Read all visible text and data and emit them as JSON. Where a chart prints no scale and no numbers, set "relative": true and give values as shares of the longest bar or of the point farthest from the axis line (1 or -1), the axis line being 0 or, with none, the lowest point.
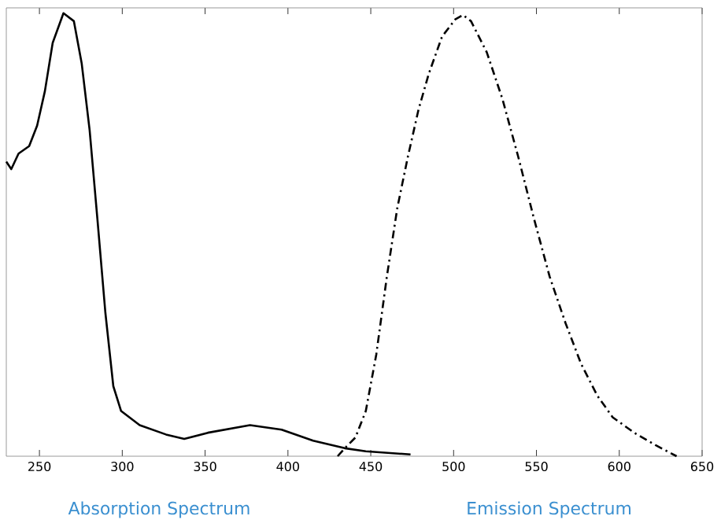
{
  "chart_data": {
    "type": "line",
    "relative": true,
    "xlim": [
      230,
      650
    ],
    "xticks": [
      250,
      300,
      350,
      400,
      450,
      500,
      550,
      600,
      650
    ],
    "tick_labels": "x",
    "grid": false,
    "series": [
      {
        "color": "#000000",
        "line_style": "solid",
        "x": [
          230,
          233,
          237.4,
          243.8,
          248.6,
          253.3,
          258,
          264.5,
          270.8,
          275.5,
          280.3,
          285,
          289.8,
          294.6,
          299.3,
          310.5,
          326.4,
          337.4,
          351.7,
          377.1,
          396.2,
          415.2,
          434.3,
          447,
          474
        ],
        "values": [
          0.665,
          0.648,
          0.683,
          0.7,
          0.746,
          0.824,
          0.933,
          1.0,
          0.982,
          0.887,
          0.736,
          0.535,
          0.324,
          0.158,
          0.102,
          0.07,
          0.049,
          0.039,
          0.053,
          0.07,
          0.06,
          0.035,
          0.018,
          0.011,
          0.004
        ]
      },
      {
        "color": "#000000",
        "line_style": "dashed",
        "x": [
          430,
          434.3,
          440.7,
          447,
          453.3,
          459.7,
          466,
          472.4,
          478.8,
          485,
          493,
          501,
          505.7,
          510.5,
          520,
          529.5,
          539,
          548.6,
          558,
          567.6,
          577,
          586.7,
          596,
          609,
          621.9,
          634.6
        ],
        "values": [
          0,
          0.018,
          0.042,
          0.102,
          0.229,
          0.405,
          0.56,
          0.676,
          0.782,
          0.863,
          0.947,
          0.986,
          0.996,
          0.982,
          0.912,
          0.806,
          0.676,
          0.535,
          0.405,
          0.3,
          0.208,
          0.137,
          0.088,
          0.053,
          0.025,
          0
        ]
      }
    ],
    "annotations": [
      "Absorption Spectrum",
      "Emission Spectrum"
    ]
  }
}
